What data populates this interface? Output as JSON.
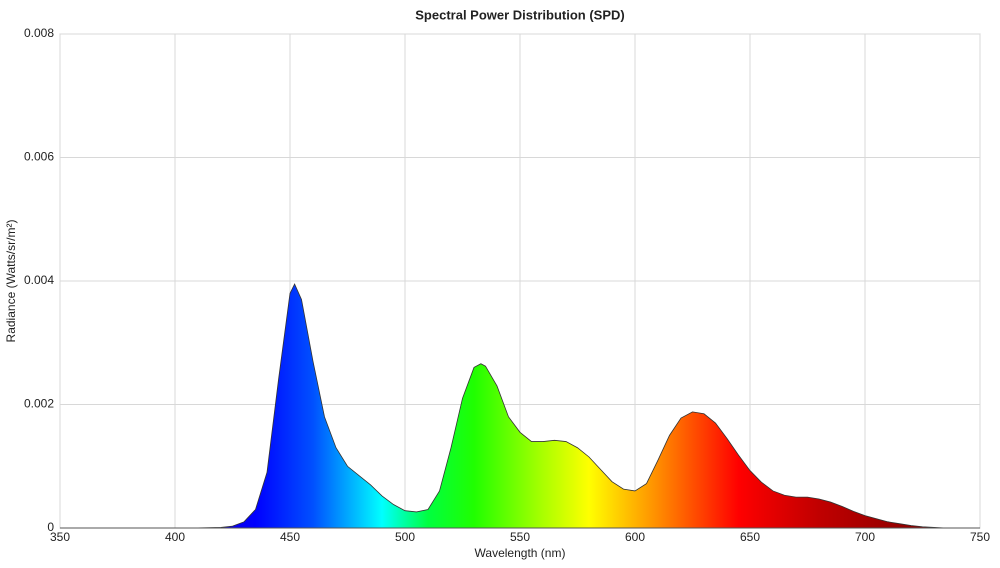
{
  "chart_data": {
    "type": "area",
    "title": "Spectral Power Distribution (SPD)",
    "x_label": "Wavelength (nm)",
    "y_label": "Radiance (Watts/sr/m²)",
    "x": [
      350,
      360,
      370,
      380,
      390,
      400,
      410,
      415,
      420,
      425,
      430,
      435,
      440,
      445,
      450,
      452,
      455,
      460,
      465,
      470,
      475,
      480,
      485,
      490,
      495,
      500,
      505,
      510,
      515,
      520,
      525,
      530,
      533,
      535,
      540,
      545,
      550,
      555,
      560,
      565,
      570,
      575,
      580,
      585,
      590,
      595,
      600,
      605,
      610,
      615,
      620,
      625,
      630,
      635,
      640,
      645,
      650,
      655,
      660,
      665,
      670,
      675,
      680,
      685,
      690,
      695,
      700,
      705,
      710,
      715,
      720,
      725,
      730,
      735,
      740,
      750
    ],
    "values": [
      0,
      0,
      0,
      0,
      0,
      0,
      2e-06,
      5e-06,
      1e-05,
      3e-05,
      0.0001,
      0.0003,
      0.0009,
      0.0024,
      0.0038,
      0.00395,
      0.0037,
      0.0027,
      0.0018,
      0.0013,
      0.001,
      0.00085,
      0.0007,
      0.00052,
      0.00038,
      0.00028,
      0.00026,
      0.0003,
      0.0006,
      0.0013,
      0.0021,
      0.0026,
      0.00266,
      0.00262,
      0.0023,
      0.0018,
      0.00155,
      0.0014,
      0.0014,
      0.00142,
      0.0014,
      0.0013,
      0.00115,
      0.00095,
      0.00075,
      0.00063,
      0.0006,
      0.00072,
      0.0011,
      0.0015,
      0.00178,
      0.00188,
      0.00185,
      0.0017,
      0.00145,
      0.00118,
      0.00093,
      0.00074,
      0.0006,
      0.00053,
      0.0005,
      0.0005,
      0.00047,
      0.00042,
      0.00035,
      0.00027,
      0.0002,
      0.00015,
      0.0001,
      7e-05,
      4e-05,
      2e-05,
      1e-05,
      0,
      0,
      0
    ],
    "xlim": [
      350,
      750
    ],
    "ylim": [
      0,
      0.008
    ],
    "xticks": [
      350,
      400,
      450,
      500,
      550,
      600,
      650,
      700,
      750
    ],
    "yticks": [
      0,
      0.002,
      0.004,
      0.006,
      0.008
    ],
    "grid": true
  }
}
